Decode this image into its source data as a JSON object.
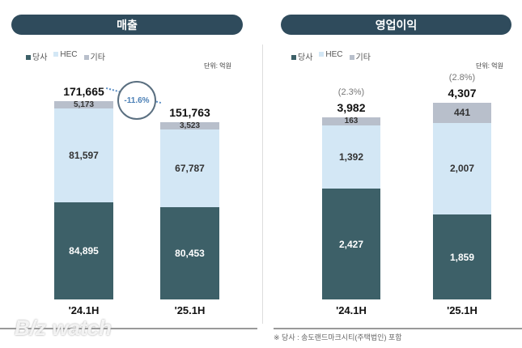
{
  "colors": {
    "당사": "#3d6068",
    "HEC": "#d3e7f5",
    "기타": "#b8bfcb"
  },
  "chart_data": [
    {
      "type": "bar",
      "stacked": true,
      "title": "매출",
      "unit": "단위: 억원",
      "legend": [
        "당사",
        "HEC",
        "기타"
      ],
      "categories": [
        "'24.1H",
        "'25.1H"
      ],
      "series": [
        {
          "name": "당사",
          "values": [
            84895,
            80453
          ]
        },
        {
          "name": "HEC",
          "values": [
            81597,
            67787
          ]
        },
        {
          "name": "기타",
          "values": [
            5173,
            3523
          ]
        }
      ],
      "totals": [
        "171,665",
        "151,763"
      ],
      "growth_label": "-11.6%",
      "max": 171665
    },
    {
      "type": "bar",
      "stacked": true,
      "title": "영업이익",
      "unit": "단위: 억원",
      "legend": [
        "당사",
        "HEC",
        "기타"
      ],
      "categories": [
        "'24.1H",
        "'25.1H"
      ],
      "series": [
        {
          "name": "당사",
          "values": [
            2427,
            1859
          ]
        },
        {
          "name": "HEC",
          "values": [
            1392,
            2007
          ]
        },
        {
          "name": "기타",
          "values": [
            163,
            441
          ]
        }
      ],
      "totals": [
        "3,982",
        "4,307"
      ],
      "margins": [
        "(2.3%)",
        "(2.8%)"
      ],
      "max": 4307
    }
  ],
  "footnote": "※ 당사 : 송도랜드마크시티(주택법인) 포함",
  "watermark": "B/z watch"
}
